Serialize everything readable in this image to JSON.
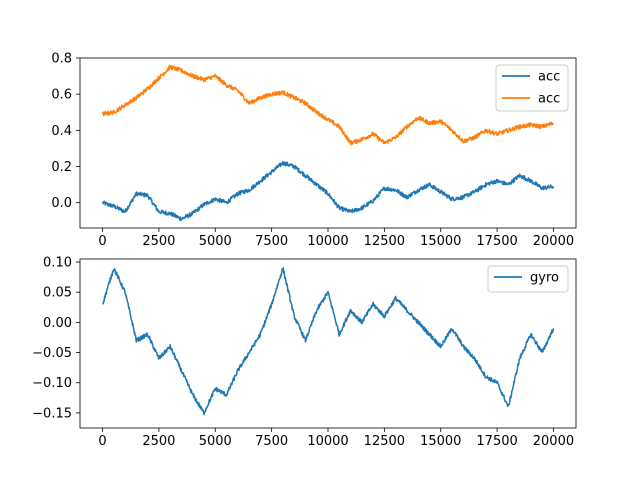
{
  "chart_data": [
    {
      "type": "line",
      "xlim": [
        -1000,
        21000
      ],
      "ylim": [
        -0.14,
        0.8
      ],
      "xticks": [
        0,
        2500,
        5000,
        7500,
        10000,
        12500,
        15000,
        17500,
        20000
      ],
      "xtick_labels": [
        "0",
        "2500",
        "5000",
        "7500",
        "10000",
        "12500",
        "15000",
        "17500",
        "20000"
      ],
      "yticks": [
        0.0,
        0.2,
        0.4,
        0.6,
        0.8
      ],
      "ytick_labels": [
        "0.0",
        "0.2",
        "0.4",
        "0.6",
        "0.8"
      ],
      "legend": "upper-right",
      "grid": false,
      "series": [
        {
          "name": "acc",
          "color": "#1f77b4",
          "x": [
            0,
            500,
            1000,
            1500,
            2000,
            2500,
            3000,
            3500,
            4000,
            4500,
            5000,
            5500,
            6000,
            6500,
            7000,
            7500,
            8000,
            8500,
            9000,
            9500,
            10000,
            10500,
            11000,
            11500,
            12000,
            12500,
            13000,
            13500,
            14000,
            14500,
            15000,
            15500,
            16000,
            16500,
            17000,
            17500,
            18000,
            18500,
            19000,
            19500,
            20000
          ],
          "values": [
            0.0,
            -0.02,
            -0.05,
            0.05,
            0.04,
            -0.05,
            -0.06,
            -0.09,
            -0.06,
            -0.01,
            0.02,
            0.0,
            0.05,
            0.07,
            0.12,
            0.17,
            0.22,
            0.2,
            0.15,
            0.1,
            0.05,
            -0.03,
            -0.05,
            -0.03,
            0.01,
            0.08,
            0.07,
            0.03,
            0.07,
            0.1,
            0.06,
            0.02,
            0.03,
            0.06,
            0.1,
            0.12,
            0.1,
            0.15,
            0.12,
            0.08,
            0.09
          ]
        },
        {
          "name": "acc",
          "color": "#ff7f0e",
          "x": [
            0,
            500,
            1000,
            1500,
            2000,
            2500,
            3000,
            3500,
            4000,
            4500,
            5000,
            5500,
            6000,
            6500,
            7000,
            7500,
            8000,
            8500,
            9000,
            9500,
            10000,
            10500,
            11000,
            11500,
            12000,
            12500,
            13000,
            13500,
            14000,
            14500,
            15000,
            15500,
            16000,
            16500,
            17000,
            17500,
            18000,
            18500,
            19000,
            19500,
            20000
          ],
          "values": [
            0.49,
            0.5,
            0.54,
            0.58,
            0.63,
            0.69,
            0.75,
            0.73,
            0.7,
            0.68,
            0.7,
            0.65,
            0.62,
            0.55,
            0.58,
            0.6,
            0.61,
            0.58,
            0.55,
            0.5,
            0.46,
            0.42,
            0.33,
            0.35,
            0.38,
            0.33,
            0.36,
            0.42,
            0.47,
            0.44,
            0.45,
            0.4,
            0.34,
            0.36,
            0.4,
            0.38,
            0.4,
            0.42,
            0.43,
            0.42,
            0.44
          ]
        }
      ]
    },
    {
      "type": "line",
      "xlim": [
        -1000,
        21000
      ],
      "ylim": [
        -0.175,
        0.105
      ],
      "xticks": [
        0,
        2500,
        5000,
        7500,
        10000,
        12500,
        15000,
        17500,
        20000
      ],
      "xtick_labels": [
        "0",
        "2500",
        "5000",
        "7500",
        "10000",
        "12500",
        "15000",
        "17500",
        "20000"
      ],
      "yticks": [
        -0.15,
        -0.1,
        -0.05,
        0.0,
        0.05,
        0.1
      ],
      "ytick_labels": [
        "−0.15",
        "−0.10",
        "−0.05",
        "0.00",
        "0.05",
        "0.10"
      ],
      "legend": "upper-right",
      "grid": false,
      "series": [
        {
          "name": "gyro",
          "color": "#1f77b4",
          "x": [
            0,
            500,
            1000,
            1500,
            2000,
            2500,
            3000,
            3500,
            4000,
            4500,
            5000,
            5500,
            6000,
            6500,
            7000,
            7500,
            8000,
            8500,
            9000,
            9500,
            10000,
            10500,
            11000,
            11500,
            12000,
            12500,
            13000,
            13500,
            14000,
            14500,
            15000,
            15500,
            16000,
            16500,
            17000,
            17500,
            18000,
            18500,
            19000,
            19500,
            20000
          ],
          "values": [
            0.03,
            0.09,
            0.05,
            -0.03,
            -0.02,
            -0.06,
            -0.04,
            -0.08,
            -0.12,
            -0.15,
            -0.11,
            -0.12,
            -0.08,
            -0.05,
            -0.02,
            0.03,
            0.09,
            0.01,
            -0.03,
            0.02,
            0.05,
            -0.02,
            0.02,
            0.0,
            0.03,
            0.01,
            0.04,
            0.02,
            0.0,
            -0.02,
            -0.04,
            -0.01,
            -0.04,
            -0.06,
            -0.09,
            -0.1,
            -0.14,
            -0.06,
            -0.02,
            -0.05,
            -0.01
          ]
        }
      ]
    }
  ]
}
